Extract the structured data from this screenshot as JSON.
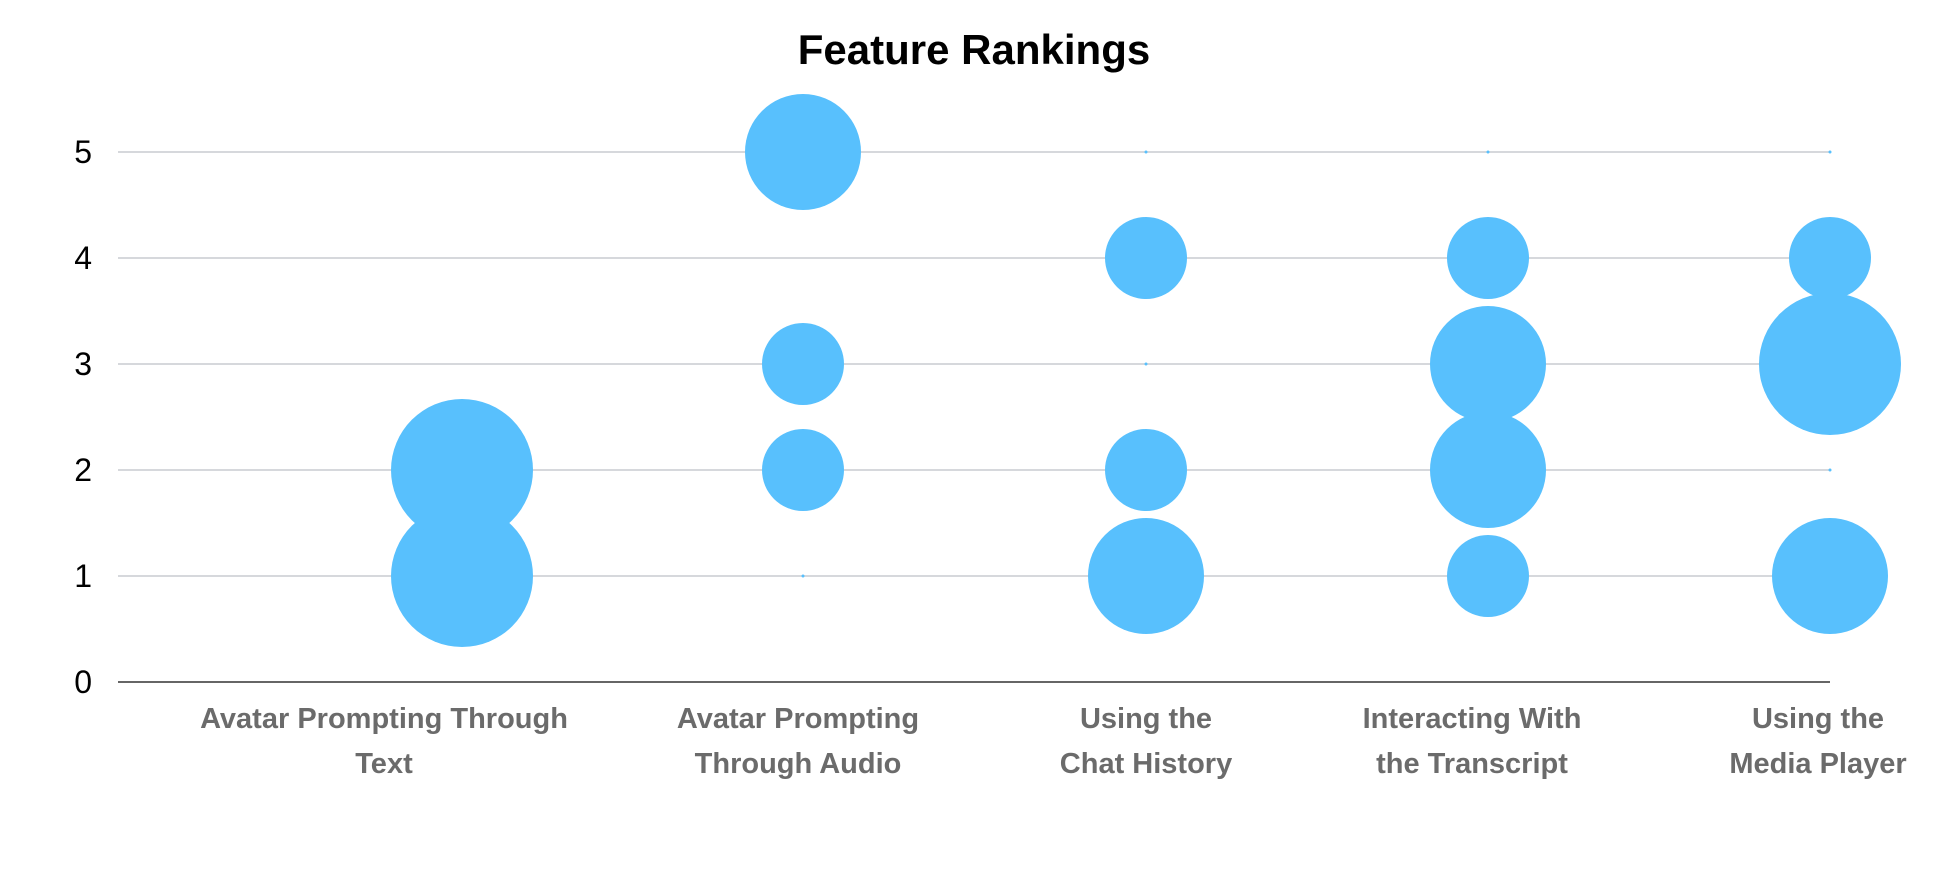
{
  "chart_data": {
    "type": "bubble",
    "title": "Feature Rankings",
    "xlabel": "",
    "ylabel": "",
    "ylim": [
      0,
      5
    ],
    "yticks": [
      "0",
      "1",
      "2",
      "3",
      "4",
      "5"
    ],
    "grid": true,
    "bubble_color": "#58c0fd",
    "categories": [
      {
        "lines": [
          "Avatar Prompting Through",
          "Text"
        ]
      },
      {
        "lines": [
          "Avatar Prompting",
          "Through Audio"
        ]
      },
      {
        "lines": [
          "Using the",
          "Chat History"
        ]
      },
      {
        "lines": [
          "Interacting With",
          "the Transcript"
        ]
      },
      {
        "lines": [
          "Using the",
          "Media Player"
        ]
      }
    ],
    "points": [
      {
        "category": 0,
        "y": 1,
        "size": 3
      },
      {
        "category": 0,
        "y": 2,
        "size": 3
      },
      {
        "category": 1,
        "y": 1,
        "size": 0
      },
      {
        "category": 1,
        "y": 2,
        "size": 1
      },
      {
        "category": 1,
        "y": 3,
        "size": 1
      },
      {
        "category": 1,
        "y": 5,
        "size": 2
      },
      {
        "category": 2,
        "y": 1,
        "size": 2
      },
      {
        "category": 2,
        "y": 2,
        "size": 1
      },
      {
        "category": 2,
        "y": 3,
        "size": 0
      },
      {
        "category": 2,
        "y": 4,
        "size": 1
      },
      {
        "category": 2,
        "y": 5,
        "size": 0
      },
      {
        "category": 3,
        "y": 1,
        "size": 1
      },
      {
        "category": 3,
        "y": 2,
        "size": 2
      },
      {
        "category": 3,
        "y": 3,
        "size": 2
      },
      {
        "category": 3,
        "y": 4,
        "size": 1
      },
      {
        "category": 3,
        "y": 5,
        "size": 0
      },
      {
        "category": 4,
        "y": 1,
        "size": 2
      },
      {
        "category": 4,
        "y": 2,
        "size": 0
      },
      {
        "category": 4,
        "y": 3,
        "size": 3
      },
      {
        "category": 4,
        "y": 4,
        "size": 1
      },
      {
        "category": 4,
        "y": 5,
        "size": 0
      }
    ]
  }
}
